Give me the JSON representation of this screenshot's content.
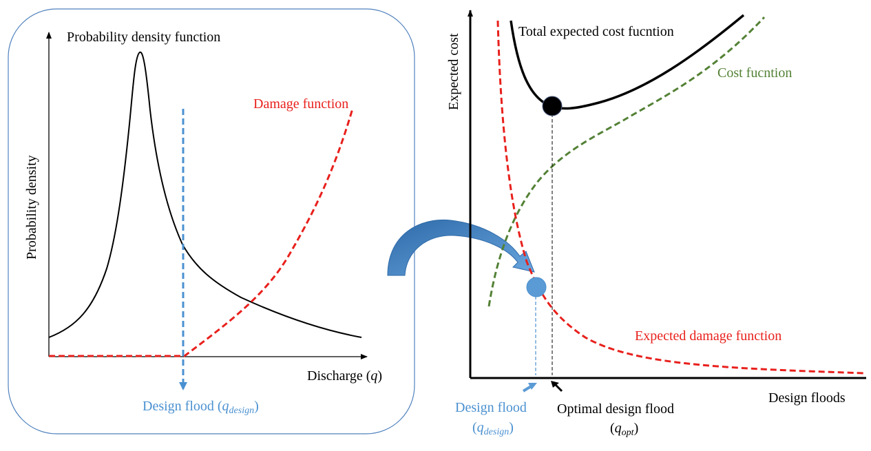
{
  "colors": {
    "black": "#000000",
    "red": "#e8201c",
    "blue": "#4a90d0",
    "blue_fill": "#5b9bd5",
    "blue_dark": "#2e6aa8",
    "green": "#538135",
    "panel_border": "#4f81bd"
  },
  "left_panel": {
    "pdf_label": "Probability density function",
    "damage_label": "Damage function",
    "y_axis_label": "Probability density",
    "x_axis_label_text": "Discharge (",
    "x_axis_label_var": "q",
    "x_axis_label_close": ")",
    "design_flood_text": "Design flood (",
    "design_flood_var": "q",
    "design_flood_sub": "design",
    "design_flood_close": ")"
  },
  "right_panel": {
    "total_cost_label": "Total expected cost fucntion",
    "cost_label": "Cost fucntion",
    "expected_damage_label": "Expected damage function",
    "y_axis_label": "Expected cost",
    "x_axis_label": "Design floods",
    "design_flood_line1": "Design flood",
    "design_flood_open": "(",
    "design_flood_var": "q",
    "design_flood_sub": "design",
    "design_flood_close": ")",
    "optimal_line1": "Optimal design flood",
    "optimal_open": "(",
    "optimal_var": "q",
    "optimal_sub": "opt",
    "optimal_close": ")"
  },
  "icons": {
    "transfer_arrow": "curved-arrow-icon",
    "optimum_marker": "filled-circle-icon",
    "design_marker": "filled-circle-icon"
  }
}
